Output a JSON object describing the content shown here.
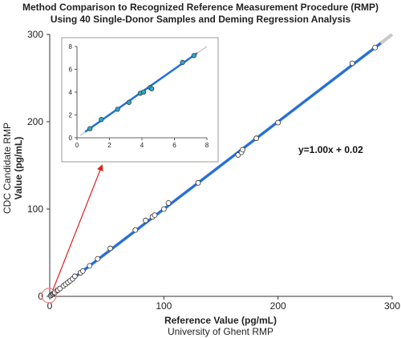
{
  "chart_data": {
    "type": "scatter",
    "title": [
      "Method Comparison to Recognized Reference Measurement Procedure (RMP)",
      "Using 40 Single-Donor Samples and Deming Regression Analysis"
    ],
    "xlabel": "Reference Value (pg/mL)",
    "xlabel_sub": "University of Ghent RMP",
    "ylabel": "CDC Candidate RMP",
    "ylabel_bold": "Value (pg/mL)",
    "xlim": [
      0,
      300
    ],
    "ylim": [
      0,
      300
    ],
    "xticks": [
      0,
      100,
      200,
      300
    ],
    "yticks": [
      0,
      100,
      200,
      300
    ],
    "equation": "y=1.00x + 0.02",
    "regression": {
      "slope": 1.0,
      "intercept": 0.02
    },
    "points": [
      [
        0.8,
        0.8
      ],
      [
        1.5,
        1.6
      ],
      [
        2.5,
        2.5
      ],
      [
        3.2,
        3.1
      ],
      [
        4.0,
        4.0
      ],
      [
        4.5,
        4.4
      ],
      [
        6.5,
        6.6
      ],
      [
        7.2,
        7.2
      ],
      [
        9,
        9
      ],
      [
        12,
        12
      ],
      [
        14,
        14
      ],
      [
        16,
        16
      ],
      [
        18,
        18
      ],
      [
        20,
        20
      ],
      [
        22,
        23
      ],
      [
        27,
        27
      ],
      [
        29,
        29
      ],
      [
        35,
        35
      ],
      [
        42,
        43
      ],
      [
        53,
        55
      ],
      [
        75,
        76
      ],
      [
        84,
        87
      ],
      [
        90,
        91
      ],
      [
        92,
        93
      ],
      [
        100,
        100
      ],
      [
        104,
        107
      ],
      [
        130,
        130
      ],
      [
        165,
        162
      ],
      [
        168,
        165
      ],
      [
        169,
        168
      ],
      [
        181,
        181
      ],
      [
        200,
        199
      ],
      [
        265,
        267
      ],
      [
        285,
        285
      ]
    ],
    "inset": {
      "xlim": [
        0,
        8
      ],
      "ylim": [
        0,
        8
      ],
      "xticks": [
        0,
        2,
        4,
        6,
        8
      ],
      "yticks": [
        0,
        2,
        4,
        6,
        8
      ],
      "points": [
        [
          0.8,
          0.8
        ],
        [
          1.5,
          1.6
        ],
        [
          2.5,
          2.5
        ],
        [
          3.2,
          3.1
        ],
        [
          3.9,
          3.9
        ],
        [
          4.1,
          4.0
        ],
        [
          4.5,
          4.4
        ],
        [
          4.6,
          4.3
        ],
        [
          6.5,
          6.6
        ],
        [
          7.2,
          7.2
        ]
      ]
    },
    "colors": {
      "regression_line": "#1f6fe0",
      "identity_line": "#c8c8c8",
      "marker_main": "#ffffff",
      "marker_inset": "#2aa8c8",
      "marker_edge": "#333333",
      "arrow": "#e02020",
      "highlight_circle": "#f08080"
    },
    "grid": false
  }
}
